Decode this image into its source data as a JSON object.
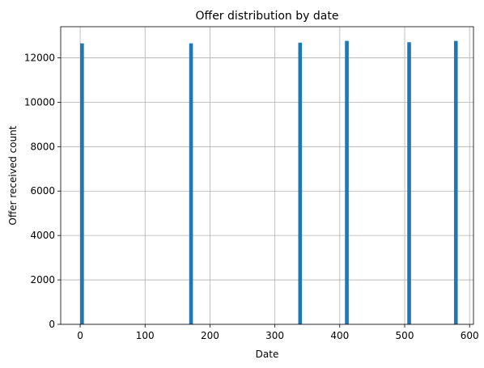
{
  "chart_data": {
    "type": "bar",
    "title": "Offer distribution by date",
    "xlabel": "Date",
    "ylabel": "Offer received count",
    "xlim": [
      -30,
      606
    ],
    "ylim": [
      0,
      13400
    ],
    "xticks": [
      0,
      100,
      200,
      300,
      400,
      500,
      600
    ],
    "yticks": [
      0,
      2000,
      4000,
      6000,
      8000,
      10000,
      12000
    ],
    "grid": true,
    "bin_width": 5.76,
    "bars": [
      {
        "x": 0,
        "value": 12650
      },
      {
        "x": 168,
        "value": 12650
      },
      {
        "x": 336,
        "value": 12680
      },
      {
        "x": 408,
        "value": 12760
      },
      {
        "x": 504,
        "value": 12700
      },
      {
        "x": 576,
        "value": 12760
      }
    ],
    "bar_color": "#1f77b4"
  }
}
